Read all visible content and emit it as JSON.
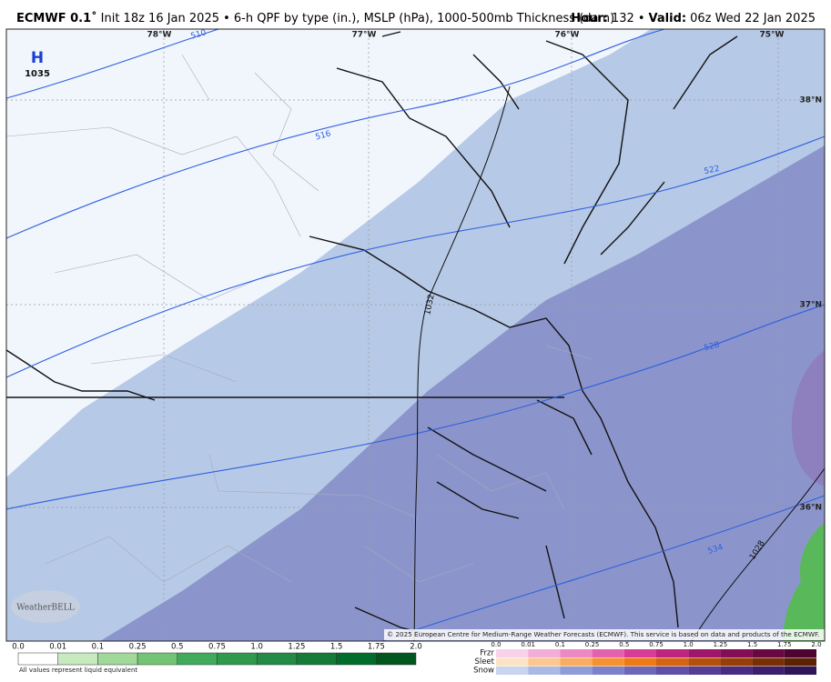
{
  "header": {
    "model": "ECMWF 0.1˚",
    "description": "Init 18z 16 Jan 2025 • 6-h QPF by type (in.), MSLP (hPa), 1000-500mb Thickness (dam)",
    "hour_label": "Hour:",
    "hour_value": "132 •",
    "valid_label": "Valid:",
    "valid_value": "06z Wed 22 Jan 2025"
  },
  "map": {
    "longitudes": [
      "78°W",
      "77°W",
      "76°W",
      "75°W"
    ],
    "latitudes": [
      "38°N",
      "37°N",
      "36°N"
    ],
    "thickness_labels": [
      "510",
      "516",
      "522",
      "528",
      "534"
    ],
    "pressure_labels": [
      "1032",
      "1028"
    ],
    "high": {
      "label": "H",
      "pressure": "1035"
    },
    "copyright": "© 2025 European Centre for Medium-Range Weather Forecasts (ECMWF). This service is based on data and products of the ECMWF.",
    "logo": "WeatherBELL"
  },
  "legend": {
    "rain_ticks": [
      "0.0",
      "0.01",
      "0.1",
      "0.25",
      "0.5",
      "0.75",
      "1.0",
      "1.25",
      "1.5",
      "1.75",
      "2.0"
    ],
    "note": "All values represent liquid equivalent",
    "types": [
      "Frzr",
      "Sleet",
      "Snow"
    ],
    "mixed_ticks": [
      "0.0",
      "0.01",
      "0.1",
      "0.25",
      "0.5",
      "0.75",
      "1.0",
      "1.25",
      "1.5",
      "1.75",
      "2.0"
    ]
  }
}
